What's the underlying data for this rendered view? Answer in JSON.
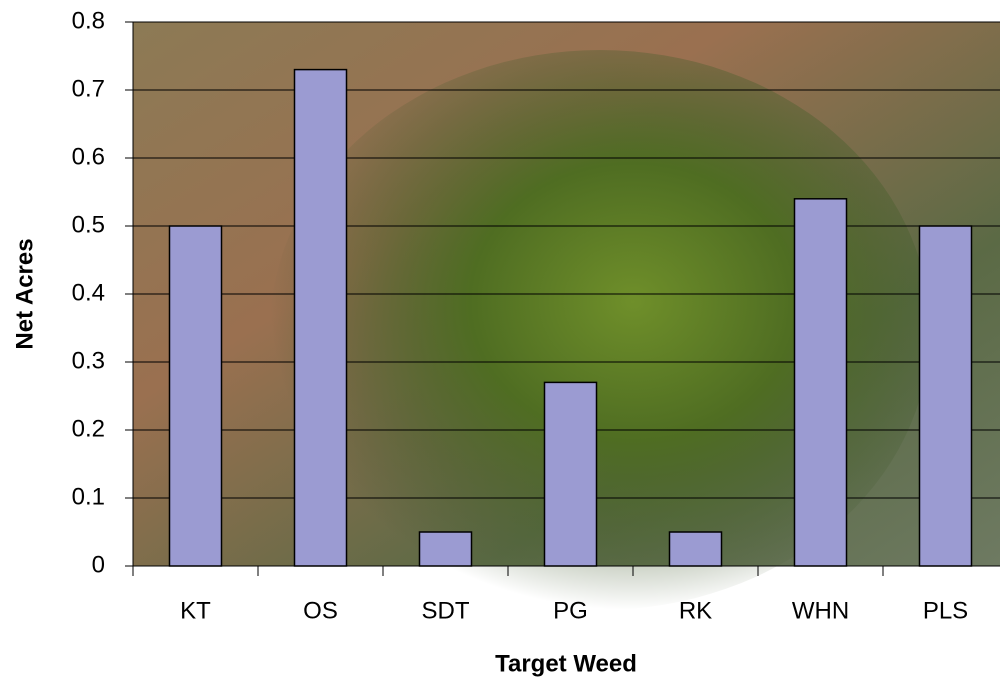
{
  "chart_data": {
    "type": "bar",
    "x_label": "Target Weed",
    "y_label": "Net Acres",
    "categories": [
      "KT",
      "OS",
      "SDT",
      "PG",
      "RK",
      "WHN",
      "PLS"
    ],
    "values": [
      0.5,
      0.73,
      0.05,
      0.27,
      0.05,
      0.54,
      0.5
    ],
    "color": "#9b9bd2",
    "ylim": [
      0,
      0.8
    ],
    "yticks": [
      0,
      0.1,
      0.2,
      0.3,
      0.4,
      0.5,
      0.6,
      0.7,
      0.8
    ],
    "grid": true
  }
}
